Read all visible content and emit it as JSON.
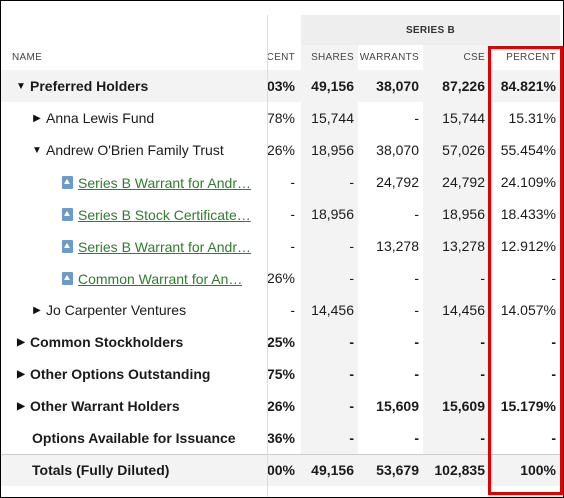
{
  "group_header": "SERIES B",
  "columns": {
    "name": "NAME",
    "percent_prev": "CENT",
    "shares": "SHARES",
    "warrants": "WARRANTS",
    "cse": "CSE",
    "percent": "PERCENT"
  },
  "rows": [
    {
      "name": "Preferred Holders",
      "pp": "03%",
      "shares": "49,156",
      "warrants": "38,070",
      "cse": "87,226",
      "pct": "84.821%"
    },
    {
      "name": "Anna Lewis Fund",
      "pp": "78%",
      "shares": "15,744",
      "warrants": "-",
      "cse": "15,744",
      "pct": "15.31%"
    },
    {
      "name": "Andrew O'Brien Family Trust",
      "pp": "26%",
      "shares": "18,956",
      "warrants": "38,070",
      "cse": "57,026",
      "pct": "55.454%"
    },
    {
      "name": "Series B Warrant for Andr…",
      "pp": "-",
      "shares": "-",
      "warrants": "24,792",
      "cse": "24,792",
      "pct": "24.109%"
    },
    {
      "name": "Series B Stock Certificate…",
      "pp": "-",
      "shares": "18,956",
      "warrants": "-",
      "cse": "18,956",
      "pct": "18.433%"
    },
    {
      "name": "Series B Warrant for Andr…",
      "pp": "-",
      "shares": "-",
      "warrants": "13,278",
      "cse": "13,278",
      "pct": "12.912%"
    },
    {
      "name": "Common Warrant for An…",
      "pp": "26%",
      "shares": "-",
      "warrants": "-",
      "cse": "-",
      "pct": "-"
    },
    {
      "name": "Jo Carpenter Ventures",
      "pp": "-",
      "shares": "14,456",
      "warrants": "-",
      "cse": "14,456",
      "pct": "14.057%"
    },
    {
      "name": "Common Stockholders",
      "pp": "25%",
      "shares": "-",
      "warrants": "-",
      "cse": "-",
      "pct": "-"
    },
    {
      "name": "Other Options Outstanding",
      "pp": "75%",
      "shares": "-",
      "warrants": "-",
      "cse": "-",
      "pct": "-"
    },
    {
      "name": "Other Warrant Holders",
      "pp": "26%",
      "shares": "-",
      "warrants": "15,609",
      "cse": "15,609",
      "pct": "15.179%"
    },
    {
      "name": "Options Available for Issuance",
      "pp": "36%",
      "shares": "-",
      "warrants": "-",
      "cse": "-",
      "pct": "-"
    },
    {
      "name": "Totals (Fully Diluted)",
      "pp": "00%",
      "shares": "49,156",
      "warrants": "53,679",
      "cse": "102,835",
      "pct": "100%"
    }
  ],
  "colors": {
    "highlight": "#e00000",
    "link": "#2d7d2d",
    "doc_icon": "#6b9bc6",
    "shade": "#f3f3f3"
  }
}
